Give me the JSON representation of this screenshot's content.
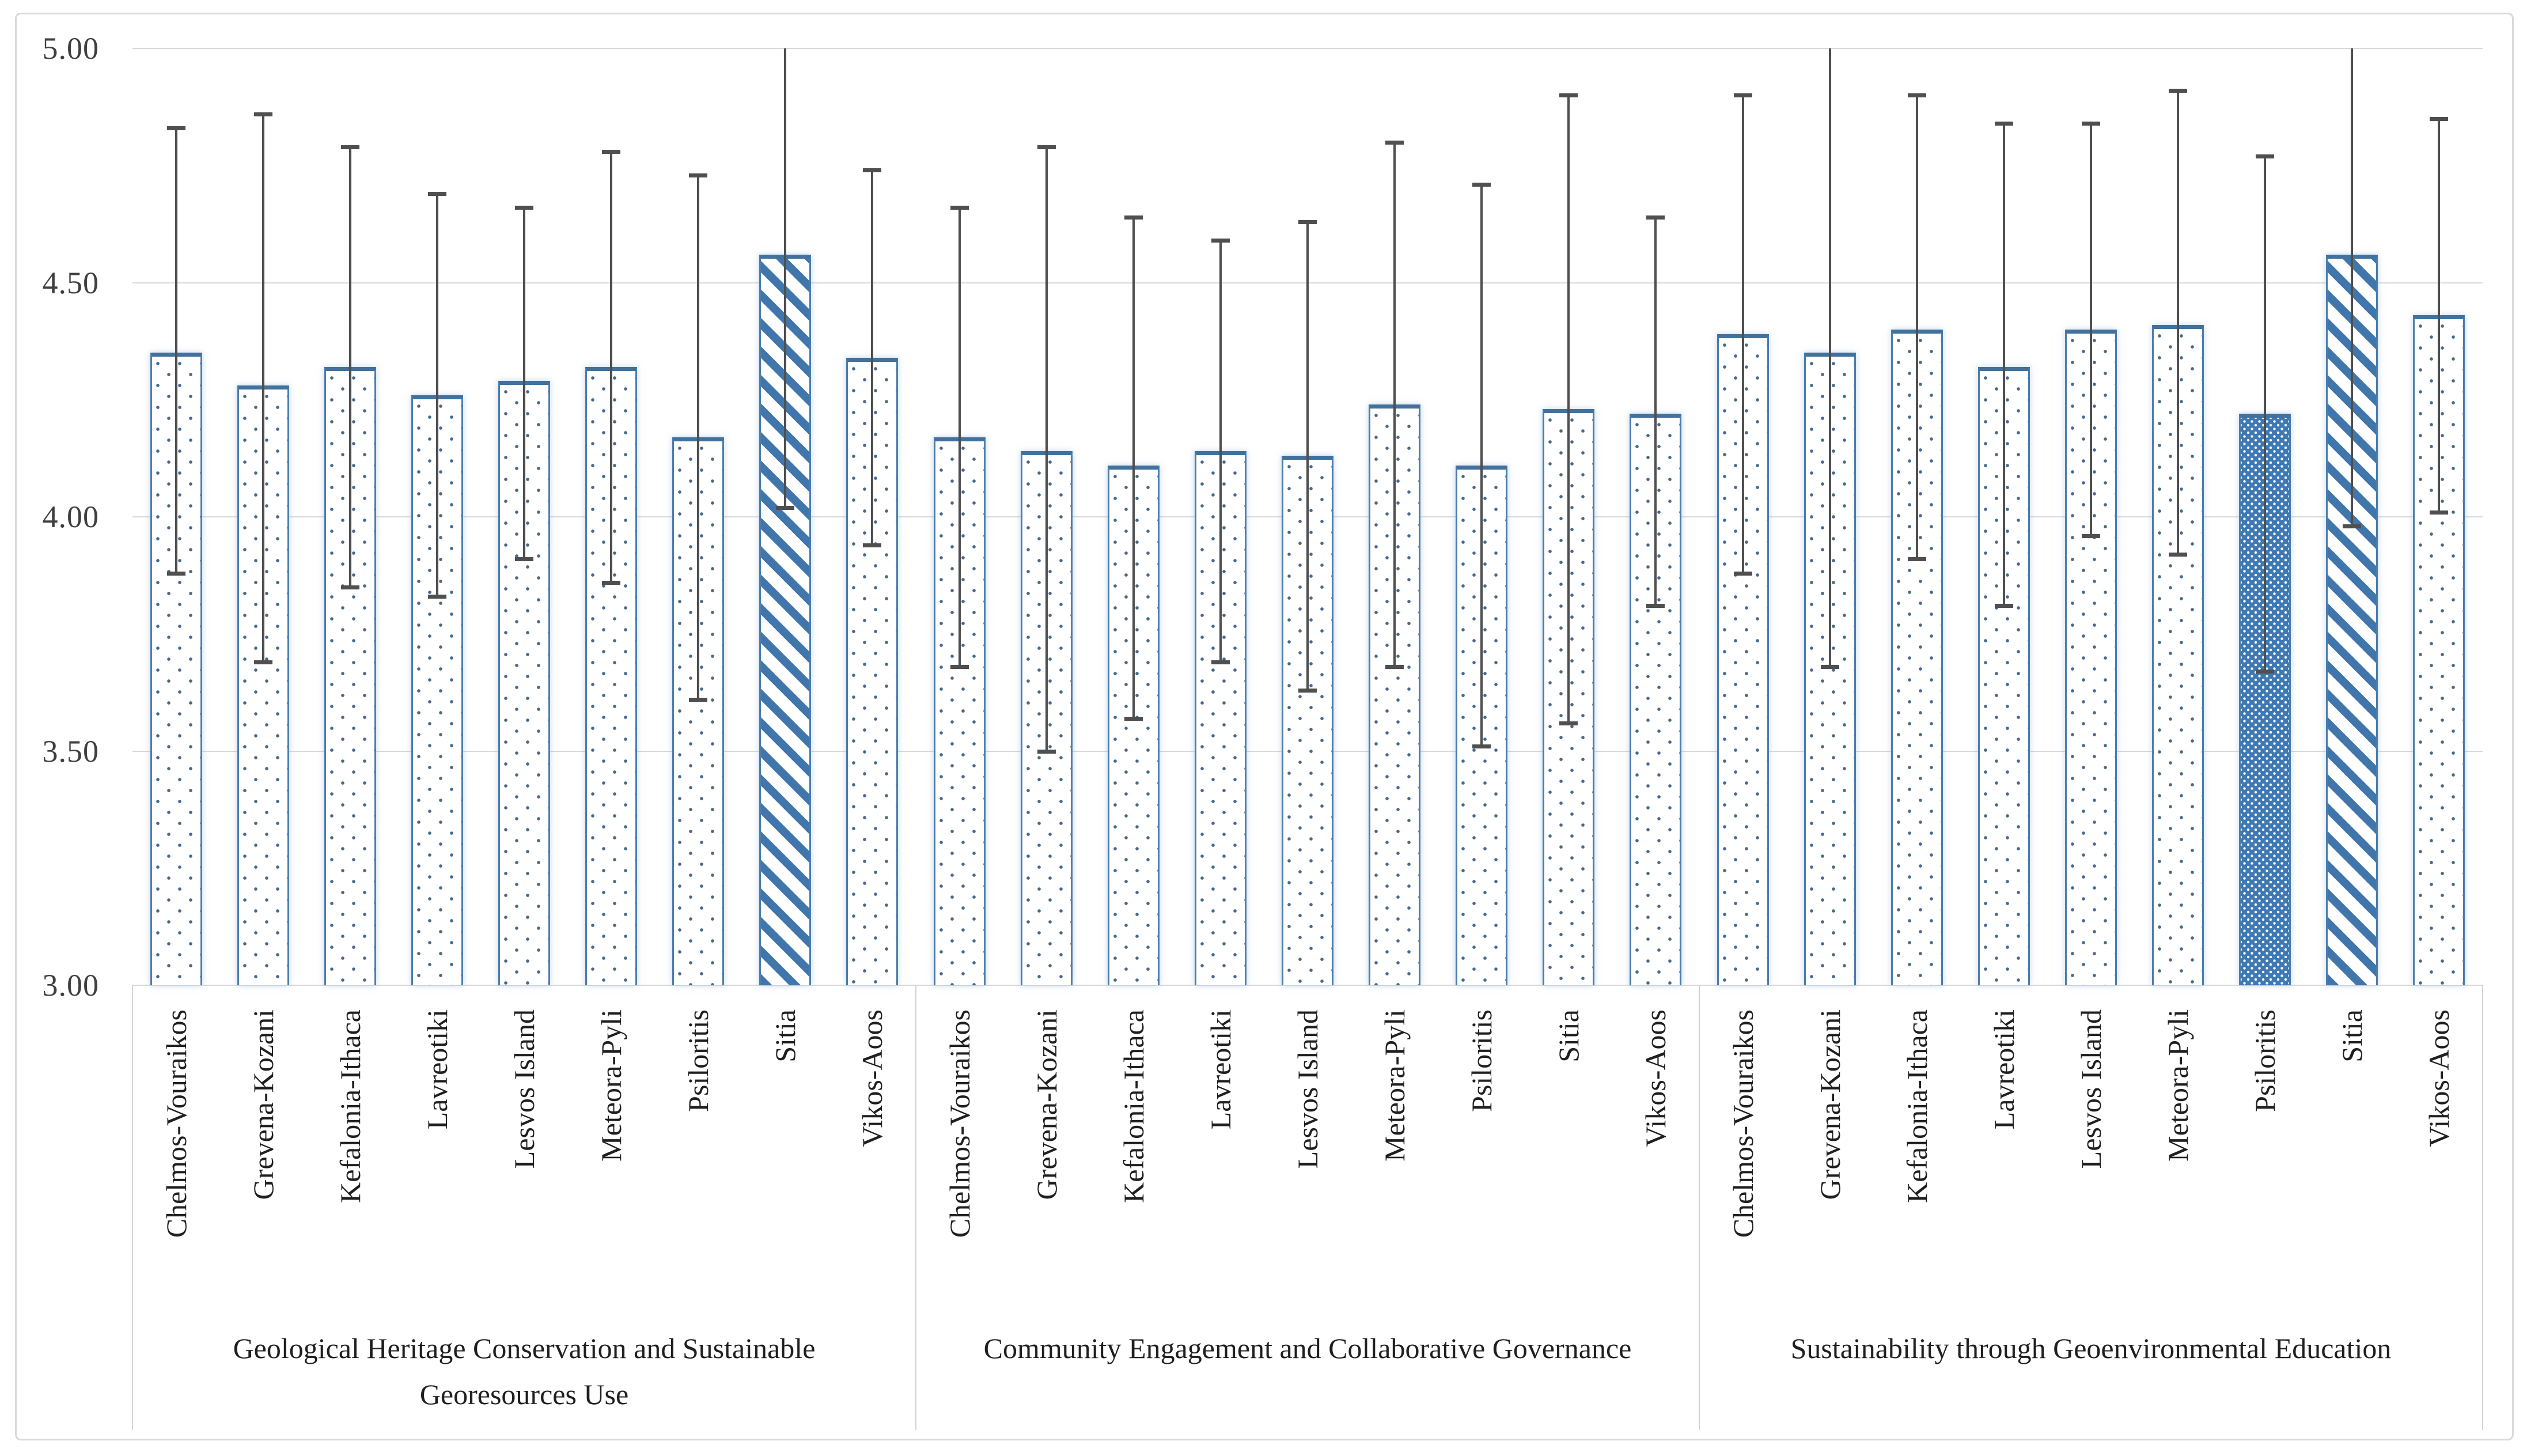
{
  "chart_data": {
    "type": "bar",
    "title": "",
    "xlabel": "",
    "ylabel": "",
    "ylim": [
      3.0,
      5.0
    ],
    "ytick_labels": [
      "5.00",
      "4.50",
      "4.00",
      "3.50",
      "3.00"
    ],
    "ytick_values": [
      5.0,
      4.5,
      4.0,
      3.5,
      3.0
    ],
    "grid": true,
    "legend": false,
    "error_bars": true,
    "groups": [
      {
        "label": "Geological Heritage Conservation and Sustainable Georesources Use",
        "categories": [
          "Chelmos-Vouraikos",
          "Grevena-Kozani",
          "Kefalonia-Ithaca",
          "Lavreotiki",
          "Lesvos Island",
          "Meteora-Pyli",
          "Psiloritis",
          "Sitia",
          "Vikos-Aoos"
        ],
        "values": [
          4.35,
          4.28,
          4.32,
          4.26,
          4.29,
          4.32,
          4.17,
          4.56,
          4.34
        ],
        "error_high": [
          4.83,
          4.86,
          4.79,
          4.69,
          4.66,
          4.78,
          4.73,
          5.0,
          4.74
        ],
        "error_low": [
          3.88,
          3.69,
          3.85,
          3.83,
          3.91,
          3.86,
          3.61,
          4.02,
          3.94
        ],
        "error_high_clipped": [
          false,
          false,
          false,
          false,
          false,
          false,
          false,
          true,
          false
        ],
        "patterns": [
          "dots",
          "dots",
          "dots",
          "dots",
          "dots",
          "dots",
          "dots",
          "diagonal",
          "dots"
        ]
      },
      {
        "label": "Community Engagement and Collaborative Governance",
        "categories": [
          "Chelmos-Vouraikos",
          "Grevena-Kozani",
          "Kefalonia-Ithaca",
          "Lavreotiki",
          "Lesvos Island",
          "Meteora-Pyli",
          "Psiloritis",
          "Sitia",
          "Vikos-Aoos"
        ],
        "values": [
          4.17,
          4.14,
          4.11,
          4.14,
          4.13,
          4.24,
          4.11,
          4.23,
          4.22
        ],
        "error_high": [
          4.66,
          4.79,
          4.64,
          4.59,
          4.63,
          4.8,
          4.71,
          4.9,
          4.64
        ],
        "error_low": [
          3.68,
          3.5,
          3.57,
          3.69,
          3.63,
          3.68,
          3.51,
          3.56,
          3.81
        ],
        "error_high_clipped": [
          false,
          false,
          false,
          false,
          false,
          false,
          false,
          false,
          false
        ],
        "patterns": [
          "dots",
          "dots",
          "dots",
          "dots",
          "dots",
          "dots",
          "dots",
          "dots",
          "dots"
        ]
      },
      {
        "label": "Sustainability through Geoenvironmental Education",
        "categories": [
          "Chelmos-Vouraikos",
          "Grevena-Kozani",
          "Kefalonia-Ithaca",
          "Lavreotiki",
          "Lesvos Island",
          "Meteora-Pyli",
          "Psiloritis",
          "Sitia",
          "Vikos-Aoos"
        ],
        "values": [
          4.39,
          4.35,
          4.4,
          4.32,
          4.4,
          4.41,
          4.22,
          4.56,
          4.43
        ],
        "error_high": [
          4.9,
          5.0,
          4.9,
          4.84,
          4.84,
          4.91,
          4.77,
          5.0,
          4.85
        ],
        "error_low": [
          3.88,
          3.68,
          3.91,
          3.81,
          3.96,
          3.92,
          3.67,
          3.98,
          4.01
        ],
        "error_high_clipped": [
          false,
          true,
          false,
          false,
          false,
          false,
          false,
          true,
          false
        ],
        "patterns": [
          "dots",
          "dots",
          "dots",
          "dots",
          "dots",
          "dots",
          "dense",
          "diagonal",
          "dots"
        ]
      }
    ],
    "colors": {
      "bar_fill": "#ffffff",
      "bar_border": "#4a7dad",
      "bar_border_top": "#41719c",
      "dot_pattern": "#466a8c",
      "diagonal_stripe": "#4176ad",
      "dense_fill": "#3e79b4",
      "error_bar": "#4f4f4f",
      "gridline": "#d9d9d9",
      "axis_text": "#3f3f3f",
      "chart_border": "#d9d9d9"
    }
  }
}
